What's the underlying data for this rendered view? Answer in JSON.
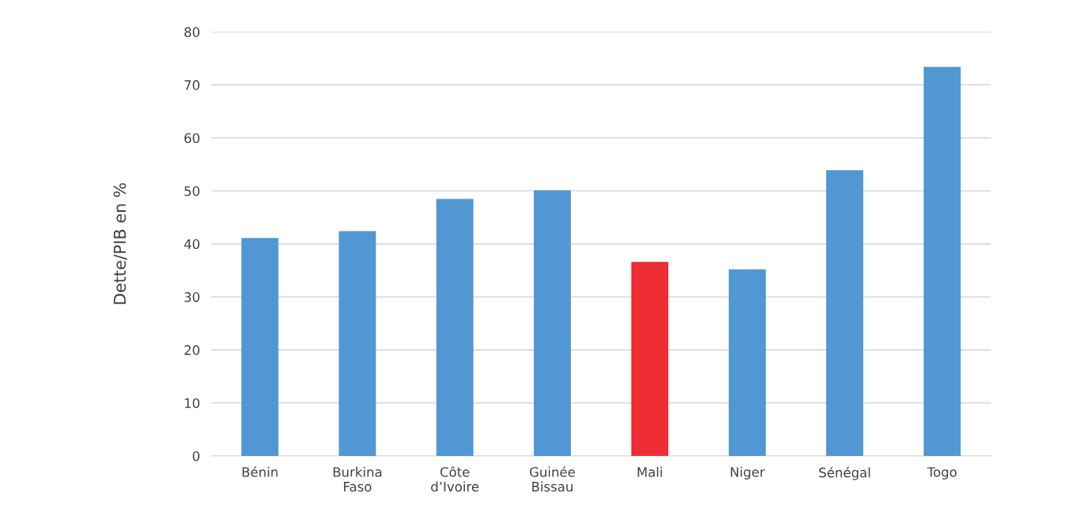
{
  "chart_data": {
    "type": "bar",
    "ylabel": "Dette/PIB en %",
    "categories": [
      "Bénin",
      "Burkina\nFaso",
      "Côte\nd’Ivoire",
      "Guinée\nBissau",
      "Mali",
      "Niger",
      "Sénégal",
      "Togo"
    ],
    "values": [
      41.1,
      42.4,
      48.5,
      50.1,
      36.6,
      35.2,
      53.9,
      73.4
    ],
    "colors": [
      "#5097d3",
      "#5097d3",
      "#5097d3",
      "#5097d3",
      "#ee2d34",
      "#5097d3",
      "#5097d3",
      "#5097d3"
    ],
    "ylim": [
      0,
      80
    ],
    "yticks": [
      0,
      10,
      20,
      30,
      40,
      50,
      60,
      70,
      80
    ],
    "grid": "y"
  }
}
